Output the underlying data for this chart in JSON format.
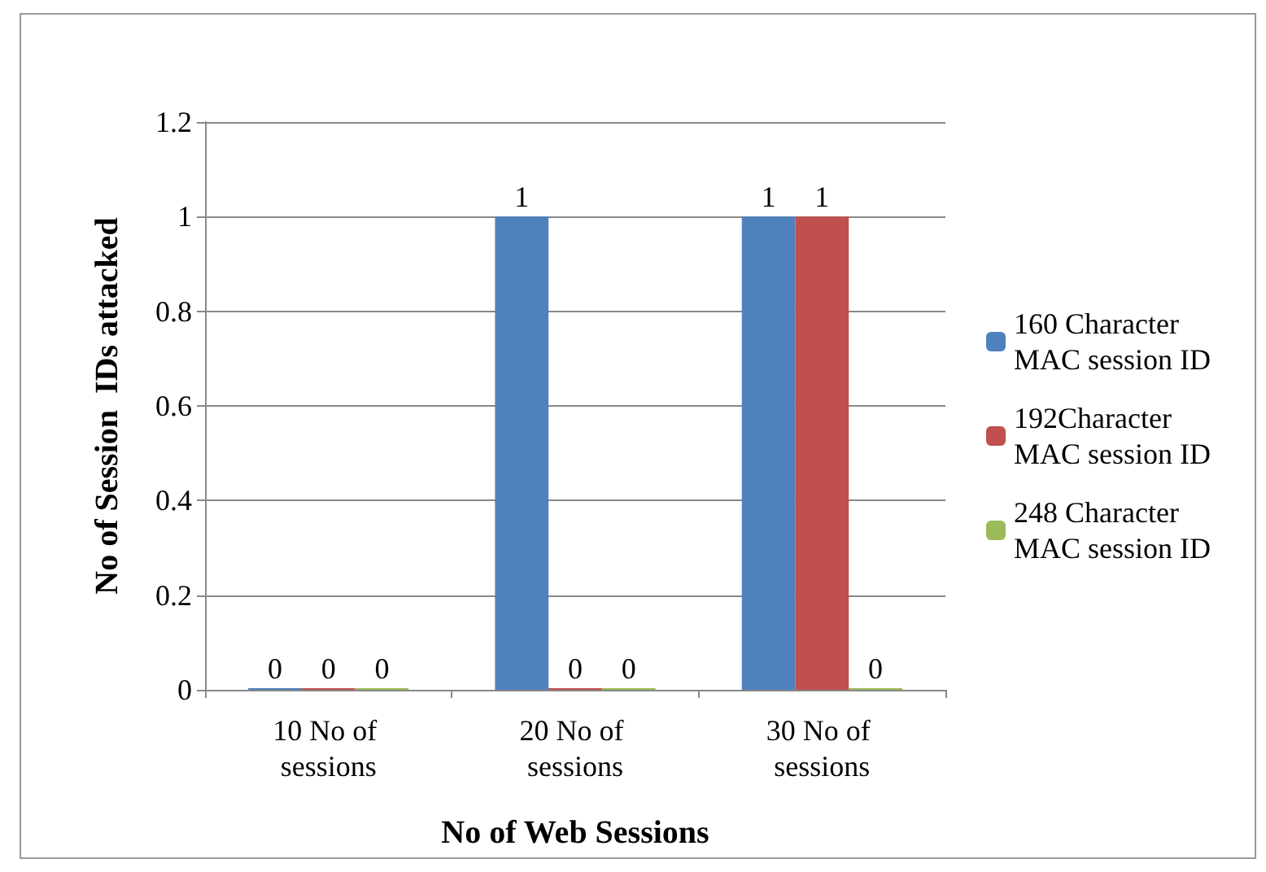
{
  "chart_data": {
    "type": "bar",
    "xlabel": "No of Web Sessions",
    "ylabel": "No of Session  IDs attacked",
    "categories": [
      "10 No of sessions",
      "20 No of sessions",
      "30 No of sessions"
    ],
    "series": [
      {
        "name": "160 Character MAC session ID",
        "color": "#4f81bd",
        "values": [
          0,
          1,
          1
        ]
      },
      {
        "name": "192Character MAC session ID",
        "color": "#c0504d",
        "values": [
          0,
          0,
          1
        ]
      },
      {
        "name": "248 Character MAC session ID",
        "color": "#9bbb59",
        "values": [
          0,
          0,
          0
        ]
      }
    ],
    "ylim": [
      0,
      1.2
    ],
    "yticks": [
      0,
      0.2,
      0.4,
      0.6,
      0.8,
      1,
      1.2
    ],
    "grid": "y",
    "legend": "right",
    "data_labels": true
  }
}
